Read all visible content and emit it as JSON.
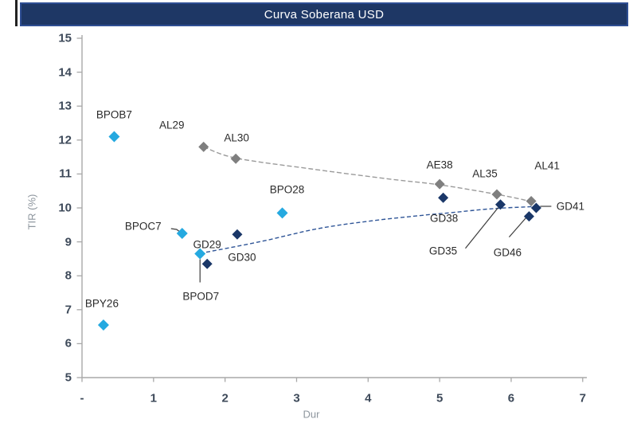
{
  "title": "Curva Soberana USD",
  "colors": {
    "title_bar_bg": "#1E3765",
    "title_bar_border": "#2E4E93",
    "title_text": "#FFFFFF",
    "axis_line": "#A8A8A8",
    "tick_label": "#3E4A5A",
    "axis_title": "#8E969E",
    "point_label": "#2B2B2B",
    "leader": "#3C3C3C",
    "gray": "#7F7F7F",
    "navy": "#1A3768",
    "cyan": "#25A9E0",
    "gray_curve": "#9A9A9A",
    "navy_curve": "#2F5597"
  },
  "chart_data": {
    "type": "scatter",
    "title": "Curva Soberana USD",
    "xlabel": "Dur",
    "ylabel": "TIR (%)",
    "xlim": [
      0,
      7
    ],
    "ylim": [
      5,
      15
    ],
    "grid": false,
    "legend": false,
    "x_ticks": {
      "values": [
        0,
        1,
        2,
        3,
        4,
        5,
        6,
        7
      ],
      "labels": [
        "-",
        "1",
        "2",
        "3",
        "4",
        "5",
        "6",
        "7"
      ]
    },
    "y_ticks": {
      "values": [
        5,
        6,
        7,
        8,
        9,
        10,
        11,
        12,
        13,
        14,
        15
      ],
      "labels": [
        "5",
        "6",
        "7",
        "8",
        "9",
        "10",
        "11",
        "12",
        "13",
        "14",
        "15"
      ]
    },
    "series": [
      {
        "key": "gray",
        "marker": "diamond",
        "curve_dash": "6 3",
        "curve": [
          [
            1.7,
            11.8
          ],
          [
            2.15,
            11.47
          ],
          [
            3.2,
            11.15
          ],
          [
            4.3,
            10.85
          ],
          [
            5.0,
            10.68
          ],
          [
            5.8,
            10.4
          ],
          [
            6.28,
            10.19
          ]
        ],
        "points": [
          {
            "label": "AL29",
            "x": 1.7,
            "y": 11.8,
            "label_dx": -40,
            "label_dy": -27
          },
          {
            "label": "AL30",
            "x": 2.15,
            "y": 11.45,
            "label_dx": 1,
            "label_dy": -26
          },
          {
            "label": "AE38",
            "x": 5.0,
            "y": 10.7,
            "label_dx": 0,
            "label_dy": -24
          },
          {
            "label": "AL35",
            "x": 5.8,
            "y": 10.4,
            "label_dx": -15,
            "label_dy": -26
          },
          {
            "label": "AL41",
            "x": 6.28,
            "y": 10.2,
            "label_dx": 20,
            "label_dy": -44
          }
        ]
      },
      {
        "key": "navy",
        "marker": "diamond",
        "curve_dash": "5 3",
        "curve": [
          [
            1.65,
            8.66
          ],
          [
            2.5,
            9.01
          ],
          [
            3.3,
            9.39
          ],
          [
            4.05,
            9.62
          ],
          [
            4.8,
            9.79
          ],
          [
            5.16,
            9.86
          ],
          [
            5.75,
            9.98
          ],
          [
            6.33,
            10.04
          ]
        ],
        "points": [
          {
            "label": "GD29",
            "x": 1.75,
            "y": 8.35,
            "label_dx": 0,
            "label_dy": -24
          },
          {
            "label": "GD30",
            "x": 2.17,
            "y": 9.22,
            "label_dx": 6,
            "label_dy": 29
          },
          {
            "label": "GD38",
            "x": 5.05,
            "y": 10.3,
            "label_dx": 1,
            "label_dy": 26
          },
          {
            "label": "GD35",
            "x": 5.85,
            "y": 10.1,
            "label_dx": -72,
            "label_dy": 58,
            "leader": [
              [
                -44,
                55
              ],
              [
                -3,
                4
              ]
            ]
          },
          {
            "label": "GD41",
            "x": 6.35,
            "y": 10.0,
            "label_dx": 43,
            "label_dy": -2,
            "leader": [
              [
                5,
                -2
              ],
              [
                19,
                -2
              ]
            ]
          },
          {
            "label": "GD46",
            "x": 6.25,
            "y": 9.75,
            "label_dx": -27,
            "label_dy": 45,
            "leader": [
              [
                -25,
                26
              ],
              [
                -4,
                2
              ]
            ]
          }
        ]
      },
      {
        "key": "cyan",
        "marker": "diamond",
        "points": [
          {
            "label": "BPY26",
            "x": 0.3,
            "y": 6.55,
            "label_dx": -2,
            "label_dy": -27
          },
          {
            "label": "BPOB7",
            "x": 0.45,
            "y": 12.1,
            "label_dx": 0,
            "label_dy": -28
          },
          {
            "label": "BPOC7",
            "x": 1.4,
            "y": 9.25,
            "label_dx": -49,
            "label_dy": -9,
            "leader": [
              [
                -14,
                -6
              ],
              [
                -7,
                -5
              ],
              [
                -3,
                -2
              ]
            ]
          },
          {
            "label": "BPOD7",
            "x": 1.65,
            "y": 8.65,
            "label_dx": 1,
            "label_dy": 53,
            "leader": [
              [
                0,
                36
              ],
              [
                0,
                7
              ]
            ]
          },
          {
            "label": "BPO28",
            "x": 2.8,
            "y": 9.85,
            "label_dx": 6,
            "label_dy": -29
          }
        ]
      }
    ]
  }
}
